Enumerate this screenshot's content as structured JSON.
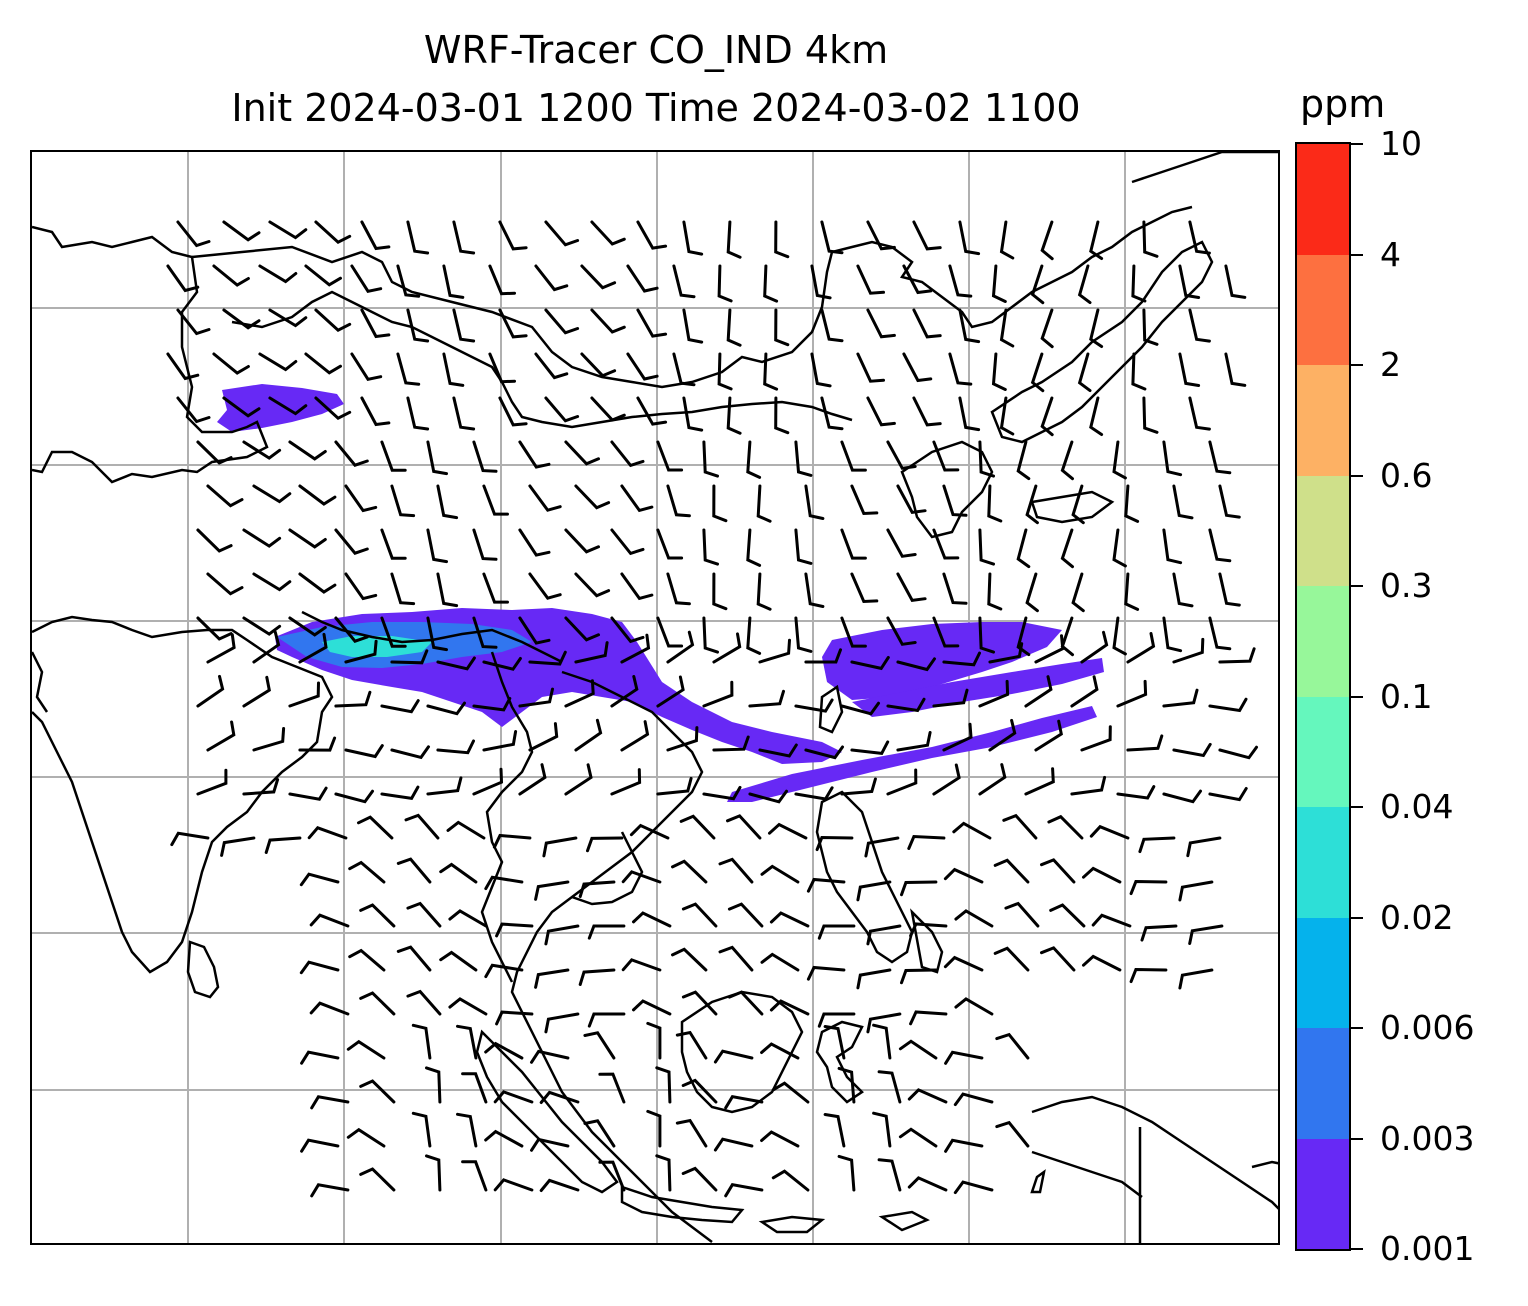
{
  "title": {
    "line1": "WRF-Tracer CO_IND 4km",
    "line2": "Init 2024-03-01 1200 Time 2024-03-02 1100"
  },
  "colorbar": {
    "unit": "ppm",
    "levels": [
      "0.001",
      "0.003",
      "0.006",
      "0.02",
      "0.04",
      "0.1",
      "0.3",
      "0.6",
      "2",
      "4",
      "10"
    ],
    "colors": [
      "#6729f5",
      "#3176ef",
      "#05b2ec",
      "#2ddfd7",
      "#65f7bd",
      "#97f79a",
      "#cfe08a",
      "#fdb164",
      "#fd7040",
      "#fb2a18"
    ]
  },
  "map": {
    "gridlines": true,
    "gridline_color": "#b0b0b0",
    "coastline_color": "#000000",
    "wind_barb_color": "#000000",
    "tracer_plumes": [
      {
        "name": "northern-india-to-myanmar",
        "level": "0.001-0.04"
      },
      {
        "name": "south-china-plume",
        "level": "0.001"
      },
      {
        "name": "pacific-plume",
        "level": "0.001"
      },
      {
        "name": "philippine-sea-plume",
        "level": "0.001"
      },
      {
        "name": "tibetan-patch",
        "level": "0.001"
      }
    ]
  }
}
